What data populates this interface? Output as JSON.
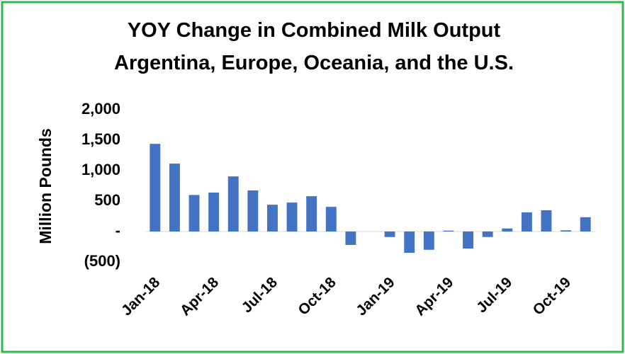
{
  "chart_data": {
    "type": "bar",
    "title": [
      "YOY Change in Combined Milk Output",
      "Argentina, Europe, Oceania, and the U.S."
    ],
    "y_label": "Million Pounds",
    "categories": [
      "Jan-18",
      null,
      null,
      "Apr-18",
      null,
      null,
      "Jul-18",
      null,
      null,
      "Oct-18",
      null,
      null,
      "Jan-19",
      null,
      null,
      "Apr-19",
      null,
      null,
      "Jul-19",
      null,
      null,
      "Oct-19",
      null
    ],
    "values": [
      1440,
      1115,
      600,
      640,
      905,
      675,
      440,
      475,
      580,
      405,
      -220,
      0,
      -90,
      -350,
      -300,
      15,
      -280,
      -90,
      50,
      315,
      350,
      20,
      235
    ],
    "color": "#4472c4",
    "ylim": [
      -500,
      2000
    ],
    "yticks": [
      {
        "value": -500,
        "label": "(500)"
      },
      {
        "value": 0,
        "label": "-"
      },
      {
        "value": 500,
        "label": "500"
      },
      {
        "value": 1000,
        "label": "1,000"
      },
      {
        "value": 1500,
        "label": "1,500"
      },
      {
        "value": 2000,
        "label": "2,000"
      }
    ],
    "grid": false
  }
}
